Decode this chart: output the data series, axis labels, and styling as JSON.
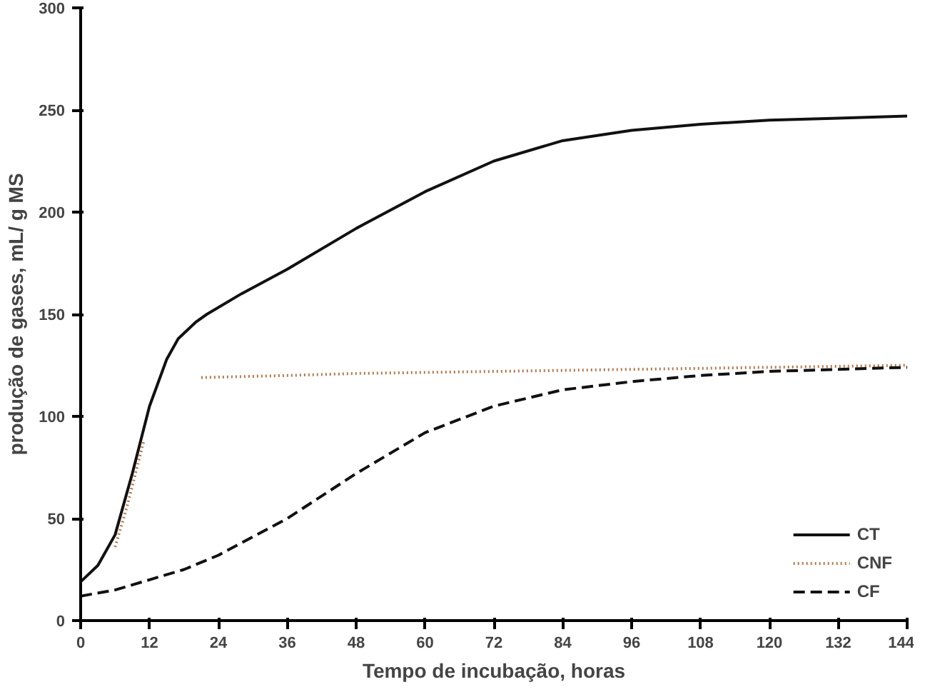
{
  "chart_data": {
    "type": "line",
    "xlabel": "Tempo de incubação, horas",
    "ylabel": "produção de gases, mL/ g MS",
    "xlim": [
      0,
      144
    ],
    "xticks": [
      0,
      12,
      24,
      36,
      48,
      60,
      72,
      84,
      96,
      108,
      120,
      132,
      144
    ],
    "ylim": [
      0,
      300
    ],
    "yticks": [
      0,
      50,
      100,
      150,
      200,
      250,
      300
    ],
    "grid": false,
    "legend": "bottom right",
    "series": [
      {
        "name": "CT",
        "color": "#111111",
        "line_style": "solid",
        "x": [
          0,
          3,
          6,
          9,
          12,
          15,
          17,
          20,
          22,
          28,
          36,
          48,
          60,
          72,
          84,
          96,
          108,
          120,
          132,
          144
        ],
        "values": [
          19,
          27,
          42,
          72,
          105,
          128,
          138,
          146,
          150,
          160,
          172,
          192,
          210,
          225,
          235,
          240,
          243,
          245,
          246,
          247
        ]
      },
      {
        "name": "CNF",
        "color": "#b07a50",
        "line_style": "dotted",
        "x": [
          6,
          8,
          10,
          11,
          16,
          21,
          36,
          48,
          72,
          96,
          120,
          144
        ],
        "values": [
          36,
          55,
          77,
          88,
          null,
          119,
          120,
          121,
          122,
          123,
          124,
          125
        ]
      },
      {
        "name": "CF",
        "color": "#111111",
        "line_style": "dashed",
        "x": [
          0,
          6,
          12,
          18,
          24,
          36,
          48,
          60,
          72,
          84,
          96,
          108,
          120,
          132,
          144
        ],
        "values": [
          12,
          15,
          20,
          25,
          32,
          50,
          72,
          92,
          105,
          113,
          117,
          120,
          122,
          123,
          124
        ]
      }
    ]
  }
}
